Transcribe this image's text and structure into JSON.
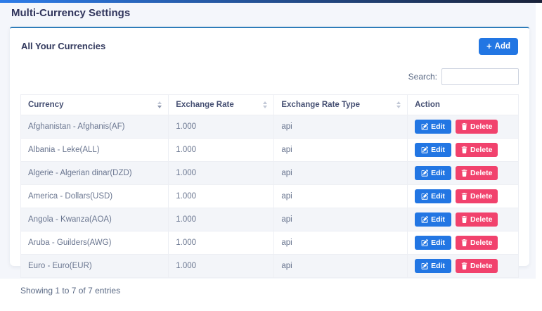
{
  "page": {
    "title": "Multi-Currency Settings",
    "background_color": "#f4f6fb",
    "topbar_gradient": [
      "#2d7ce9",
      "#1a2239"
    ]
  },
  "card": {
    "heading": "All Your Currencies",
    "top_border_color": "#2e7cb9",
    "add_button": {
      "label": "Add",
      "icon": "plus-icon",
      "color": "#2276e3"
    }
  },
  "search": {
    "label": "Search:",
    "value": ""
  },
  "table": {
    "headers": [
      {
        "label": "Currency",
        "sortable": true,
        "sort_state": "asc"
      },
      {
        "label": "Exchange Rate",
        "sortable": true,
        "sort_state": "none"
      },
      {
        "label": "Exchange Rate Type",
        "sortable": true,
        "sort_state": "none"
      },
      {
        "label": "Action",
        "sortable": false,
        "sort_state": "none"
      }
    ],
    "rows": [
      {
        "currency": "Afghanistan - Afghanis(AF)",
        "exchange_rate": "1.000",
        "exchange_rate_type": "api"
      },
      {
        "currency": "Albania - Leke(ALL)",
        "exchange_rate": "1.000",
        "exchange_rate_type": "api"
      },
      {
        "currency": "Algerie - Algerian dinar(DZD)",
        "exchange_rate": "1.000",
        "exchange_rate_type": "api"
      },
      {
        "currency": "America - Dollars(USD)",
        "exchange_rate": "1.000",
        "exchange_rate_type": "api"
      },
      {
        "currency": "Angola - Kwanza(AOA)",
        "exchange_rate": "1.000",
        "exchange_rate_type": "api"
      },
      {
        "currency": "Aruba - Guilders(AWG)",
        "exchange_rate": "1.000",
        "exchange_rate_type": "api"
      },
      {
        "currency": "Euro - Euro(EUR)",
        "exchange_rate": "1.000",
        "exchange_rate_type": "api"
      }
    ],
    "actions": {
      "edit_label": "Edit",
      "edit_icon": "edit-icon",
      "edit_color": "#2276e3",
      "delete_label": "Delete",
      "delete_icon": "trash-icon",
      "delete_color": "#f1426d"
    },
    "footer": "Showing 1 to 7 of 7 entries",
    "stripe_color": "#f3f5f9"
  }
}
